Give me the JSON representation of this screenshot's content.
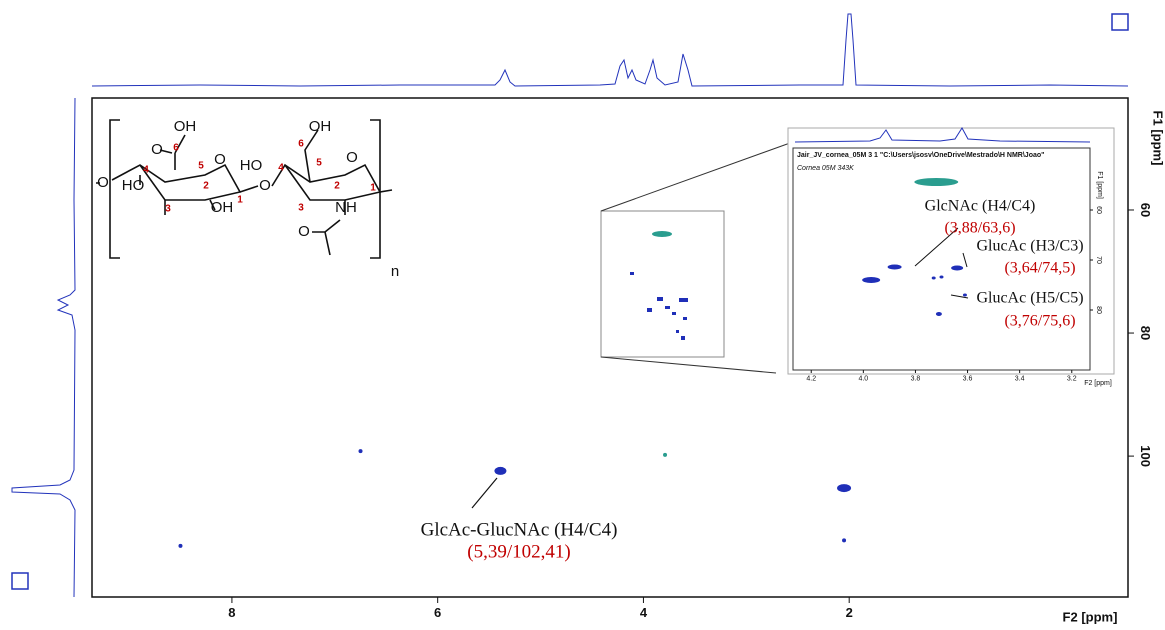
{
  "chart_data": {
    "type": "scatter",
    "xlabel": "F2 [ppm]",
    "ylabel": "F1 [ppm]",
    "xlim": [
      9.36,
      -0.71
    ],
    "ylim": [
      41.8,
      122.9
    ],
    "xticks": [
      8,
      6,
      4,
      2
    ],
    "yticks": [
      60,
      80,
      100
    ],
    "series": [
      {
        "color": "#1f2fb8",
        "x": [
          8.5,
          6.75,
          5.39,
          2.05,
          2.05
        ],
        "y": [
          114.6,
          99.2,
          102.41,
          105.2,
          113.7
        ]
      },
      {
        "color": "#2a9d8f",
        "x": [
          3.79
        ],
        "y": [
          99.8
        ]
      }
    ],
    "annotations": [
      {
        "text": "GlcAc-GlucNAc (H4/C4)",
        "coords": "(5,39/102,41)"
      }
    ],
    "inset": {
      "title": "Jair_JV_cornea_05M 3 1 \"C:\\Users\\jsosv\\OneDrive\\Mestrado\\H NMR\\Joao\"",
      "subtitle": "Cornea 05M 343K",
      "xlabel": "F2 [ppm]",
      "ylabel": "F1 [ppm]",
      "xlim": [
        4.27,
        3.13
      ],
      "ylim": [
        47.6,
        92
      ],
      "xticks": [
        4.2,
        {
          "value": 4.0,
          "label": "4.0"
        },
        3.8,
        3.6,
        3.4,
        3.2
      ],
      "yticks": [
        60,
        70,
        80
      ],
      "series": [
        {
          "color": "#2a9d8f",
          "x": [
            3.72
          ],
          "y": [
            54.4
          ]
        },
        {
          "color": "#1f2fb8",
          "x": [
            3.88,
            3.64,
            3.97,
            3.73,
            3.7,
            3.61,
            3.71
          ],
          "y": [
            71.4,
            71.6,
            74,
            73.6,
            73.4,
            77,
            80.8
          ]
        }
      ],
      "annotations": [
        {
          "text": "GlcNAc (H4/C4)",
          "coords": "(3,88/63,6)"
        },
        {
          "text": "GlucAc (H3/C3)",
          "coords": "(3,64/74,5)"
        },
        {
          "text": "GlucAc (H5/C5)",
          "coords": "(3,76/75,6)"
        }
      ]
    },
    "structure": {
      "atoms": [
        "O",
        "OH",
        "O",
        "O",
        "HO",
        "OH",
        "O",
        "HO",
        "OH",
        "O",
        "NH",
        "O",
        "n"
      ],
      "numbers": [
        "6",
        "5",
        "4",
        "3",
        "2",
        "1",
        "6",
        "5",
        "4",
        "3",
        "2",
        "1"
      ]
    }
  }
}
